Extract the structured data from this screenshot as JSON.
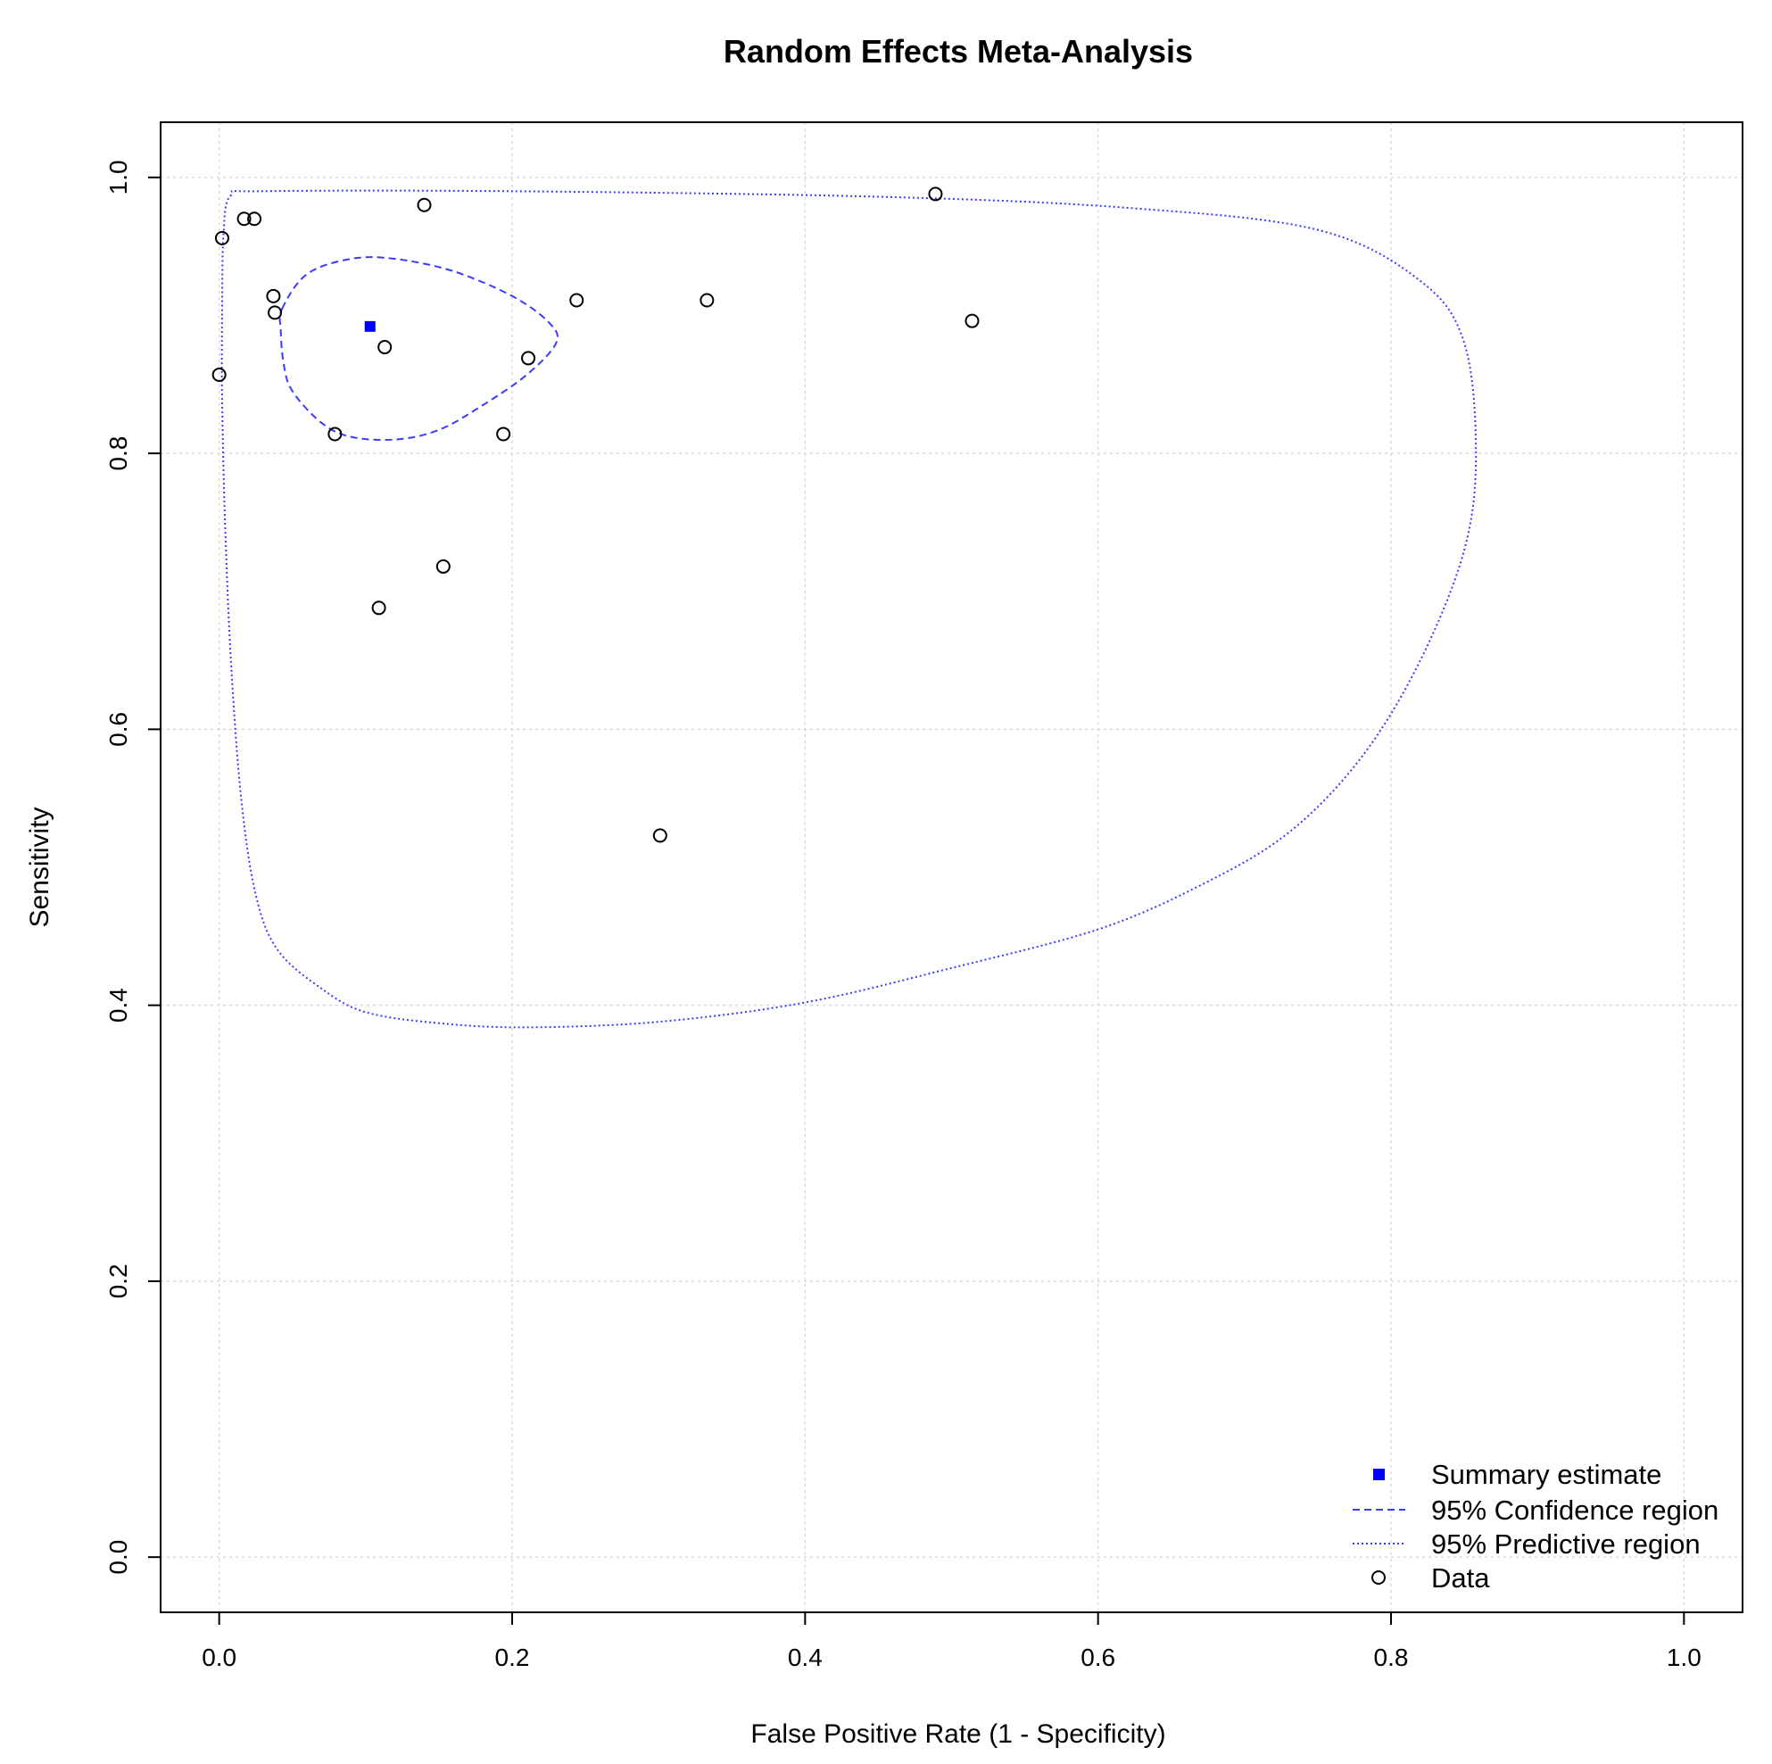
{
  "chart_data": {
    "type": "scatter",
    "title": "Random Effects Meta-Analysis",
    "xlabel": "False Positive Rate (1 - Specificity)",
    "ylabel": "Sensitivity",
    "xlim": [
      -0.04,
      1.04
    ],
    "ylim": [
      -0.04,
      1.04
    ],
    "xticks": [
      0.0,
      0.2,
      0.4,
      0.6,
      0.8,
      1.0
    ],
    "yticks": [
      0.0,
      0.2,
      0.4,
      0.6,
      0.8,
      1.0
    ],
    "xtick_labels": [
      "0.0",
      "0.2",
      "0.4",
      "0.6",
      "0.8",
      "1.0"
    ],
    "ytick_labels": [
      "0.0",
      "0.2",
      "0.4",
      "0.6",
      "0.8",
      "1.0"
    ],
    "grid": true,
    "legend_position": "bottom-right",
    "colors": {
      "summary": "#0000ff",
      "regions": "#3b3bff",
      "data": "#000000",
      "grid": "#d3d3d3"
    },
    "summary": {
      "name": "Summary estimate",
      "x": 0.103,
      "y": 0.892
    },
    "data_points": [
      [
        0.002,
        0.956
      ],
      [
        0.017,
        0.97
      ],
      [
        0.024,
        0.97
      ],
      [
        0.0,
        0.857
      ],
      [
        0.037,
        0.914
      ],
      [
        0.038,
        0.902
      ],
      [
        0.113,
        0.877
      ],
      [
        0.14,
        0.98
      ],
      [
        0.079,
        0.814
      ],
      [
        0.194,
        0.814
      ],
      [
        0.211,
        0.869
      ],
      [
        0.244,
        0.911
      ],
      [
        0.333,
        0.911
      ],
      [
        0.489,
        0.988
      ],
      [
        0.514,
        0.896
      ],
      [
        0.153,
        0.718
      ],
      [
        0.109,
        0.688
      ],
      [
        0.301,
        0.523
      ]
    ],
    "confidence_region": [
      [
        0.043,
        0.905
      ],
      [
        0.06,
        0.93
      ],
      [
        0.09,
        0.941
      ],
      [
        0.12,
        0.941
      ],
      [
        0.16,
        0.932
      ],
      [
        0.2,
        0.914
      ],
      [
        0.225,
        0.895
      ],
      [
        0.23,
        0.88
      ],
      [
        0.21,
        0.857
      ],
      [
        0.18,
        0.835
      ],
      [
        0.15,
        0.817
      ],
      [
        0.12,
        0.81
      ],
      [
        0.09,
        0.812
      ],
      [
        0.07,
        0.822
      ],
      [
        0.05,
        0.845
      ],
      [
        0.044,
        0.865
      ],
      [
        0.042,
        0.89
      ]
    ],
    "predictive_region": [
      [
        0.002,
        0.9
      ],
      [
        0.003,
        0.96
      ],
      [
        0.008,
        0.987
      ],
      [
        0.03,
        0.99
      ],
      [
        0.2,
        0.99
      ],
      [
        0.45,
        0.986
      ],
      [
        0.62,
        0.978
      ],
      [
        0.75,
        0.962
      ],
      [
        0.82,
        0.925
      ],
      [
        0.85,
        0.88
      ],
      [
        0.858,
        0.8
      ],
      [
        0.85,
        0.73
      ],
      [
        0.82,
        0.65
      ],
      [
        0.78,
        0.58
      ],
      [
        0.73,
        0.525
      ],
      [
        0.67,
        0.487
      ],
      [
        0.6,
        0.455
      ],
      [
        0.5,
        0.427
      ],
      [
        0.4,
        0.402
      ],
      [
        0.3,
        0.388
      ],
      [
        0.21,
        0.384
      ],
      [
        0.15,
        0.387
      ],
      [
        0.1,
        0.395
      ],
      [
        0.07,
        0.412
      ],
      [
        0.04,
        0.44
      ],
      [
        0.025,
        0.48
      ],
      [
        0.015,
        0.55
      ],
      [
        0.008,
        0.65
      ],
      [
        0.004,
        0.75
      ],
      [
        0.002,
        0.84
      ]
    ],
    "legend": [
      {
        "key": "summary",
        "label": "Summary estimate"
      },
      {
        "key": "confidence",
        "label": "95% Confidence region"
      },
      {
        "key": "predictive",
        "label": "95% Predictive region"
      },
      {
        "key": "data",
        "label": "Data"
      }
    ]
  }
}
